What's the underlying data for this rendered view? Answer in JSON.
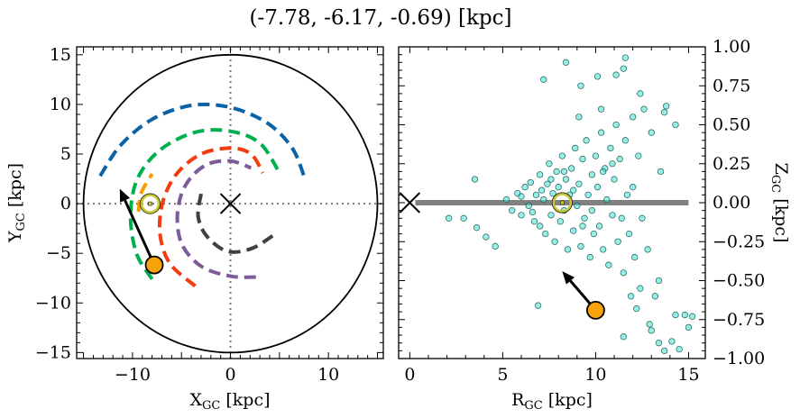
{
  "title": "(-7.78, -6.17, -0.69) [kpc]",
  "chart_data": [
    {
      "type": "line",
      "xlabel": "X",
      "xlabel_sub": "GC",
      "xlabel_unit": " [kpc]",
      "ylabel": "Y",
      "ylabel_sub": "GC",
      "ylabel_unit": " [kpc]",
      "xlim": [
        -15.7,
        15.6
      ],
      "ylim": [
        -15.6,
        15.8
      ],
      "xticks": [
        -10,
        0,
        10
      ],
      "yticks": [
        -15,
        -10,
        -5,
        0,
        5,
        10,
        15
      ],
      "grid": false,
      "boundary_circle_radius": 15,
      "arms": [
        {
          "color": "#0b62a4",
          "points": [
            [
              -13.3,
              2.8
            ],
            [
              -11.2,
              5.9
            ],
            [
              -8,
              8.5
            ],
            [
              -4,
              9.9
            ],
            [
              0,
              9.7
            ],
            [
              3.8,
              8.1
            ],
            [
              6.3,
              5.6
            ],
            [
              7.5,
              2.8
            ]
          ]
        },
        {
          "color": "#00b04f",
          "points": [
            [
              -8,
              -7.6
            ],
            [
              -9.6,
              -5
            ],
            [
              -10.2,
              -1.2
            ],
            [
              -9.5,
              2.5
            ],
            [
              -7.2,
              5.4
            ],
            [
              -3.6,
              7.2
            ],
            [
              0,
              7.3
            ],
            [
              3,
              6.1
            ],
            [
              4.9,
              3.3
            ]
          ]
        },
        {
          "color": "#f5a000",
          "points": [
            [
              -9.4,
              -0.8
            ],
            [
              -9.1,
              1.1
            ],
            [
              -8,
              3
            ]
          ]
        },
        {
          "color": "#f23c0f",
          "points": [
            [
              -3.6,
              -8.3
            ],
            [
              -6.2,
              -6
            ],
            [
              -7.2,
              -3
            ],
            [
              -6.9,
              0.2
            ],
            [
              -5.5,
              3
            ],
            [
              -3,
              5
            ],
            [
              0,
              5.6
            ],
            [
              2.1,
              5
            ],
            [
              3.3,
              3.1
            ]
          ]
        },
        {
          "color": "#7d5b98",
          "points": [
            [
              2.6,
              -7.4
            ],
            [
              0,
              -7.3
            ],
            [
              -3,
              -6.3
            ],
            [
              -5,
              -4
            ],
            [
              -5.4,
              -0.8
            ],
            [
              -4.5,
              2
            ],
            [
              -2.5,
              3.9
            ],
            [
              0,
              4.3
            ],
            [
              2.1,
              3.6
            ]
          ]
        },
        {
          "color": "#404040",
          "points": [
            [
              -3,
              1
            ],
            [
              -3.3,
              -1.3
            ],
            [
              -2.4,
              -3.3
            ],
            [
              -0.3,
              -4.8
            ],
            [
              2.2,
              -4.5
            ],
            [
              4.5,
              -3.1
            ]
          ]
        }
      ],
      "sun": [
        -8.2,
        0
      ],
      "galactic_center": [
        0,
        0
      ],
      "target": [
        -7.78,
        -6.17
      ],
      "velocity_arrow_tip": [
        -11.3,
        1.5
      ]
    },
    {
      "type": "scatter",
      "xlabel": "R",
      "xlabel_sub": "GC",
      "xlabel_unit": " [kpc]",
      "ylabel": "Z",
      "ylabel_sub": "GC",
      "ylabel_unit": " [kpc]",
      "xlim": [
        -0.6,
        15.9
      ],
      "ylim": [
        -1,
        1
      ],
      "xticks": [
        0,
        5,
        10,
        15
      ],
      "yticks": [
        -1.0,
        -0.75,
        -0.5,
        -0.25,
        0.0,
        0.25,
        0.5,
        0.75,
        1.0
      ],
      "grid": false,
      "disk_line": [
        [
          0.3,
          0
        ],
        [
          15,
          0
        ]
      ],
      "sun": [
        8.2,
        0
      ],
      "galactic_center": [
        0,
        0
      ],
      "target": [
        10,
        -0.69
      ],
      "velocity_arrow_tip": [
        8.2,
        -0.44
      ],
      "point_color": "#40e0d0",
      "points": [
        [
          5.2,
          0.02
        ],
        [
          5.5,
          -0.05
        ],
        [
          5.8,
          0.06
        ],
        [
          6,
          -0.08
        ],
        [
          6.2,
          0.1
        ],
        [
          6.4,
          -0.02
        ],
        [
          6.5,
          0.13
        ],
        [
          6.7,
          -0.12
        ],
        [
          6.8,
          0.05
        ],
        [
          7,
          0.18
        ],
        [
          7,
          -0.15
        ],
        [
          7.2,
          0.02
        ],
        [
          7.3,
          -0.2
        ],
        [
          7.4,
          0.12
        ],
        [
          7.5,
          0.25
        ],
        [
          7.6,
          -0.08
        ],
        [
          7.7,
          0.06
        ],
        [
          7.8,
          -0.25
        ],
        [
          7.9,
          0.2
        ],
        [
          8,
          0.1
        ],
        [
          8.1,
          -0.12
        ],
        [
          8.2,
          0.3
        ],
        [
          8.3,
          -0.05
        ],
        [
          8.4,
          0.15
        ],
        [
          8.5,
          -0.3
        ],
        [
          8.6,
          0.05
        ],
        [
          8.7,
          0.22
        ],
        [
          8.8,
          -0.18
        ],
        [
          8.9,
          0.35
        ],
        [
          9,
          -0.02
        ],
        [
          9.1,
          0.12
        ],
        [
          9.2,
          -0.28
        ],
        [
          9.3,
          0.28
        ],
        [
          9.4,
          -0.1
        ],
        [
          9.5,
          0.4
        ],
        [
          9.6,
          0.05
        ],
        [
          9.7,
          -0.35
        ],
        [
          9.8,
          0.18
        ],
        [
          9.9,
          -0.2
        ],
        [
          10,
          0.3
        ],
        [
          10.1,
          0.1
        ],
        [
          10.2,
          -0.15
        ],
        [
          10.3,
          0.45
        ],
        [
          10.4,
          -0.3
        ],
        [
          10.5,
          0.22
        ],
        [
          10.6,
          0.02
        ],
        [
          10.7,
          -0.4
        ],
        [
          10.8,
          0.35
        ],
        [
          10.9,
          -0.08
        ],
        [
          11,
          0.15
        ],
        [
          11.1,
          0.5
        ],
        [
          11.2,
          -0.25
        ],
        [
          11.3,
          0.28
        ],
        [
          11.5,
          -0.45
        ],
        [
          11.6,
          0.4
        ],
        [
          11.7,
          0.05
        ],
        [
          11.8,
          -0.2
        ],
        [
          12,
          0.55
        ],
        [
          12.1,
          -0.35
        ],
        [
          12.3,
          0.3
        ],
        [
          12.4,
          -0.55
        ],
        [
          12.6,
          0.6
        ],
        [
          12.8,
          -0.3
        ],
        [
          13,
          0.45
        ],
        [
          13.2,
          -0.6
        ],
        [
          13.5,
          0.2
        ],
        [
          13.8,
          0.62
        ],
        [
          14.3,
          0.5
        ],
        [
          13.4,
          -0.5
        ],
        [
          6,
          0.04
        ],
        [
          6.6,
          -0.06
        ],
        [
          7.1,
          0.08
        ],
        [
          7.6,
          0.15
        ],
        [
          8.3,
          0.2
        ],
        [
          8.8,
          0.08
        ],
        [
          9.3,
          -0.15
        ],
        [
          9.8,
          -0.05
        ],
        [
          10.4,
          0.2
        ],
        [
          10.9,
          0.25
        ],
        [
          11.4,
          -0.1
        ],
        [
          12,
          0.1
        ],
        [
          12.5,
          -0.1
        ],
        [
          2.1,
          -0.1
        ],
        [
          2.9,
          -0.1
        ],
        [
          3.5,
          0.15
        ],
        [
          4.1,
          -0.22
        ],
        [
          4.6,
          -0.28
        ],
        [
          3.6,
          -0.16
        ],
        [
          6.9,
          -0.66
        ],
        [
          7.2,
          0.79
        ],
        [
          8.4,
          0.9
        ],
        [
          9.1,
          0.55
        ],
        [
          9.2,
          0.75
        ],
        [
          10.1,
          0.81
        ],
        [
          10.3,
          0.6
        ],
        [
          11.1,
          0.82
        ],
        [
          11.5,
          0.86
        ],
        [
          11.6,
          0.93
        ],
        [
          12.4,
          0.7
        ],
        [
          13.7,
          0.58
        ],
        [
          12.9,
          -0.78
        ],
        [
          14.3,
          -0.72
        ],
        [
          14.8,
          -0.72
        ],
        [
          15.2,
          -0.73
        ],
        [
          15,
          -0.8
        ],
        [
          14.1,
          -0.89
        ],
        [
          13,
          -0.82
        ],
        [
          11.5,
          -0.86
        ],
        [
          11.9,
          -0.6
        ],
        [
          12.2,
          -0.68
        ],
        [
          13.4,
          -0.9
        ],
        [
          13.7,
          -0.95
        ],
        [
          14.5,
          -0.94
        ]
      ]
    }
  ]
}
